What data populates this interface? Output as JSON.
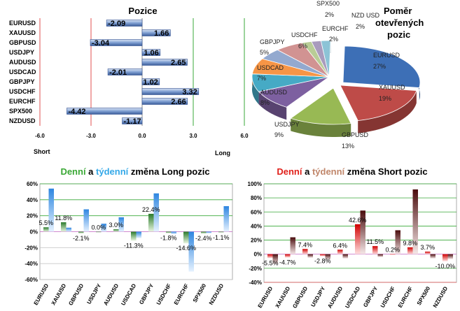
{
  "colors": {
    "pos_blue": "#6a8cc8",
    "bar_dark": "#2f4f8f",
    "green_word": "#3aa835",
    "blue_word": "#33a8e8",
    "red_word": "#e0201a",
    "tan_word": "#c0866a",
    "long_green": "#2e8b2e",
    "long_blue": "#2e86e0",
    "short_red": "#cc0000",
    "short_dark": "#5a1010"
  },
  "chart_data": [
    {
      "type": "bar",
      "orientation": "horizontal",
      "title": "Pozice",
      "categories": [
        "EURUSD",
        "XAUUSD",
        "GBPUSD",
        "USDJPY",
        "AUDUSD",
        "USDCAD",
        "GBPJPY",
        "USDCHF",
        "EURCHF",
        "SPX500",
        "NZDUSD"
      ],
      "values": [
        -2.09,
        1.66,
        -3.04,
        1.06,
        2.65,
        -2.01,
        1.02,
        3.32,
        2.66,
        -4.42,
        -1.17
      ],
      "value_labels": [
        "-2.09",
        "1.66",
        "-3.04",
        "1.06",
        "2.65",
        "-2.01",
        "1.02",
        "3.32",
        "2.66",
        "-4.42",
        "-1.17"
      ],
      "xlim": [
        -6.0,
        6.0
      ],
      "x_ticks": [
        "-6.0",
        "-3.0",
        "0.0",
        "3.0",
        "6.0"
      ],
      "left_label": "Short",
      "right_label": "Long"
    },
    {
      "type": "pie",
      "title_lines": [
        "Poměr",
        "otevřených",
        "pozic"
      ],
      "slices": [
        {
          "name": "EURUSD",
          "value": 27,
          "label": "27%",
          "color": "#3d6fb6"
        },
        {
          "name": "XAUUSD",
          "value": 19,
          "label": "19%",
          "color": "#be4b48"
        },
        {
          "name": "GBPUSD",
          "value": 13,
          "label": "13%",
          "color": "#98b954"
        },
        {
          "name": "USDJPY",
          "value": 9,
          "label": "9%",
          "color": "#7d60a0"
        },
        {
          "name": "AUDUSD",
          "value": 8,
          "label": "8%",
          "color": "#46aac5"
        },
        {
          "name": "USDCAD",
          "value": 7,
          "label": "7%",
          "color": "#f69546"
        },
        {
          "name": "GBPJPY",
          "value": 5,
          "label": "5%",
          "color": "#93a9cf"
        },
        {
          "name": "USDCHF",
          "value": 6,
          "label": "6%",
          "color": "#d19392"
        },
        {
          "name": "EURCHF",
          "value": 2,
          "label": "2%",
          "color": "#b9cd96"
        },
        {
          "name": "SPX500",
          "value": 2,
          "label": "2%",
          "color": "#a99bbd"
        },
        {
          "name": "NZD USD",
          "value": 2,
          "label": "2%",
          "color": "#8cc3d6"
        }
      ]
    },
    {
      "type": "bar",
      "title_parts": [
        {
          "text": "Denní",
          "color": "#3aa835"
        },
        {
          "text": " a ",
          "color": "#000000"
        },
        {
          "text": "týdenní",
          "color": "#33a8e8"
        },
        {
          "text": " změna Long pozic",
          "color": "#000000"
        }
      ],
      "categories": [
        "EURUSD",
        "XAUUSD",
        "GBPUSD",
        "USDJPY",
        "AUDUSD",
        "USDCAD",
        "GBPJPY",
        "USDCHF",
        "EURCHF",
        "SPX500",
        "NZDUSD"
      ],
      "series": [
        {
          "values": [
            5.5,
            11.8,
            -2.1,
            0.0,
            3.0,
            -11.3,
            22.4,
            -1.8,
            -14.6,
            -2.4,
            -1.1
          ],
          "color": "#2e8b2e"
        },
        {
          "values": [
            54,
            5,
            28,
            10,
            18,
            -8,
            48,
            -3,
            -50,
            -2,
            32
          ],
          "color": "#2e86e0"
        }
      ],
      "data_labels": [
        "5.5%",
        "11.8%",
        "-2.1%",
        "0.0%",
        "3.0%",
        "-11.3%",
        "22.4%",
        "-1.8%",
        "-14.6%",
        "-2.4%",
        "-1.1%"
      ],
      "ylim": [
        -60,
        60
      ],
      "y_ticks": [
        "60%",
        "40%",
        "20%",
        "0%",
        "-20%",
        "-40%",
        "-60%"
      ]
    },
    {
      "type": "bar",
      "title_parts": [
        {
          "text": "Denní",
          "color": "#e0201a"
        },
        {
          "text": " a ",
          "color": "#000000"
        },
        {
          "text": "týdenní",
          "color": "#c0866a"
        },
        {
          "text": " změna Short pozic",
          "color": "#000000"
        }
      ],
      "categories": [
        "EURUSD",
        "XAUUSD",
        "GBPUSD",
        "USDJPY",
        "AUDUSD",
        "USDCAD",
        "GBPJPY",
        "USDCHF",
        "EURCHF",
        "SPX500",
        "NZDUSD"
      ],
      "series": [
        {
          "values": [
            -5.5,
            -4.7,
            7.4,
            -2.8,
            6.4,
            42.6,
            11.5,
            0.2,
            9.8,
            3.7,
            -10.0
          ],
          "color": "#cc0000"
        },
        {
          "values": [
            -14,
            24,
            -5,
            -8,
            -6,
            62,
            -4,
            34,
            92,
            -6,
            -7
          ],
          "color": "#5a1010"
        }
      ],
      "data_labels": [
        "-5.5%",
        "-4.7%",
        "7.4%",
        "-2.8%",
        "6.4%",
        "42.6%",
        "11.5%",
        "0.2%",
        "9.8%",
        "3.7%",
        "-10.0%"
      ],
      "ylim": [
        -40,
        100
      ],
      "y_ticks": [
        "100%",
        "80%",
        "60%",
        "40%",
        "20%",
        "0%",
        "-20%",
        "-40%"
      ]
    }
  ]
}
